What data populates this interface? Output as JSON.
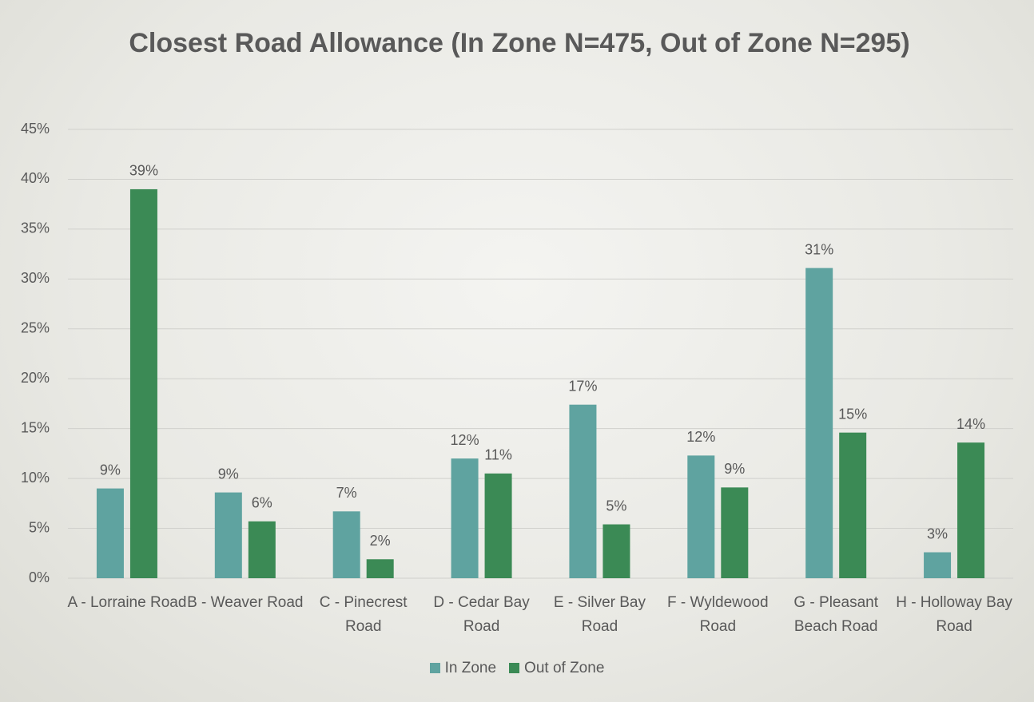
{
  "chart_data": {
    "type": "bar",
    "title": "Closest Road Allowance (In Zone N=475, Out of Zone N=295)",
    "categories": [
      "A - Lorraine Road",
      "B - Weaver Road",
      "C - Pinecrest Road",
      "D - Cedar Bay Road",
      "E - Silver Bay Road",
      "F - Wyldewood Road",
      "G - Pleasant Beach Road",
      "H - Holloway Bay Road"
    ],
    "series": [
      {
        "name": "In Zone",
        "color": "#5fa3a0",
        "values": [
          9.0,
          8.6,
          6.7,
          12.0,
          17.4,
          12.3,
          31.1,
          2.6
        ],
        "value_labels": [
          "9%",
          "9%",
          "7%",
          "12%",
          "17%",
          "12%",
          "31%",
          "3%"
        ]
      },
      {
        "name": "Out of Zone",
        "color": "#3b8a55",
        "values": [
          39.0,
          5.7,
          1.9,
          10.5,
          5.4,
          9.1,
          14.6,
          13.6
        ],
        "value_labels": [
          "39%",
          "6%",
          "2%",
          "11%",
          "5%",
          "9%",
          "15%",
          "14%"
        ]
      }
    ],
    "ylim": [
      0,
      45
    ],
    "yticks": [
      {
        "value": 0,
        "label": "0%"
      },
      {
        "value": 5,
        "label": "5%"
      },
      {
        "value": 10,
        "label": "10%"
      },
      {
        "value": 15,
        "label": "15%"
      },
      {
        "value": 20,
        "label": "20%"
      },
      {
        "value": 25,
        "label": "25%"
      },
      {
        "value": 30,
        "label": "30%"
      },
      {
        "value": 35,
        "label": "35%"
      },
      {
        "value": 40,
        "label": "40%"
      },
      {
        "value": 45,
        "label": "45%"
      }
    ],
    "grid": true,
    "legend": "bottom"
  }
}
